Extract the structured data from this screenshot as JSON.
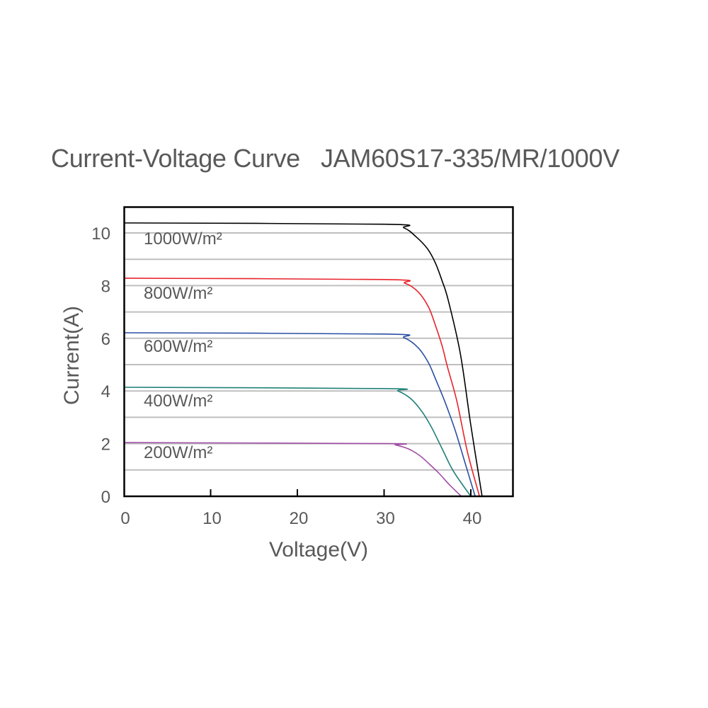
{
  "chart_data": {
    "type": "line",
    "title": "Current-Voltage Curve",
    "subtitle": "JAM60S17-335/MR/1000V",
    "xlabel": "Voltage(V)",
    "ylabel": "Current(A)",
    "xlim": [
      0,
      44.9
    ],
    "ylim": [
      0,
      10.8
    ],
    "xticks": [
      0,
      10,
      20,
      30,
      40
    ],
    "yticks": [
      0,
      2,
      4,
      6,
      8,
      10
    ],
    "grid": {
      "horizontal": true,
      "vertical": false,
      "y_step": 1,
      "color": "#bfbfbf"
    },
    "legend": "inline labels",
    "series": [
      {
        "name": "1000W/m²",
        "color": "#000000",
        "x": [
          0,
          30,
          32.3,
          33.7,
          35.0,
          35.9,
          36.7,
          37.4,
          38.8,
          40.0,
          41.3
        ],
        "y": [
          10.38,
          10.33,
          10.19,
          9.85,
          9.4,
          8.87,
          8.17,
          7.44,
          5.4,
          2.7,
          0
        ]
      },
      {
        "name": "800W/m²",
        "color": "#e8222b",
        "x": [
          0,
          30,
          32.4,
          33.9,
          35.1,
          35.9,
          36.7,
          37.3,
          38.4,
          39.6,
          41.0
        ],
        "y": [
          8.28,
          8.23,
          8.09,
          7.77,
          7.2,
          6.51,
          5.7,
          4.92,
          3.6,
          1.7,
          0
        ]
      },
      {
        "name": "600W/m²",
        "color": "#2a4fa3",
        "x": [
          0,
          30,
          32.3,
          33.9,
          35.1,
          36.0,
          37.0,
          38.2,
          39.4,
          40.5
        ],
        "y": [
          6.21,
          6.16,
          6.02,
          5.65,
          5.08,
          4.4,
          3.6,
          2.5,
          1.2,
          0
        ]
      },
      {
        "name": "400W/m²",
        "color": "#1f8077",
        "x": [
          0,
          30,
          31.6,
          33.1,
          34.4,
          35.5,
          36.7,
          38.0,
          40.0
        ],
        "y": [
          4.14,
          4.09,
          4.0,
          3.7,
          3.2,
          2.6,
          1.8,
          0.95,
          0
        ]
      },
      {
        "name": "200W/m²",
        "color": "#a04ea6",
        "x": [
          0,
          30,
          31.3,
          32.8,
          34.1,
          35.3,
          36.4,
          37.5,
          38.9
        ],
        "y": [
          2.04,
          2.0,
          1.95,
          1.8,
          1.55,
          1.2,
          0.85,
          0.45,
          0
        ]
      }
    ]
  },
  "title_text": "Current-Voltage Curve   JAM60S17-335/MR/1000V",
  "labels": {
    "x_ticks": [
      "0",
      "10",
      "20",
      "30",
      "40"
    ],
    "y_ticks": [
      "0",
      "2",
      "4",
      "6",
      "8",
      "10"
    ],
    "series": [
      "1000W/m²",
      "800W/m²",
      "600W/m²",
      "400W/m²",
      "200W/m²"
    ]
  }
}
